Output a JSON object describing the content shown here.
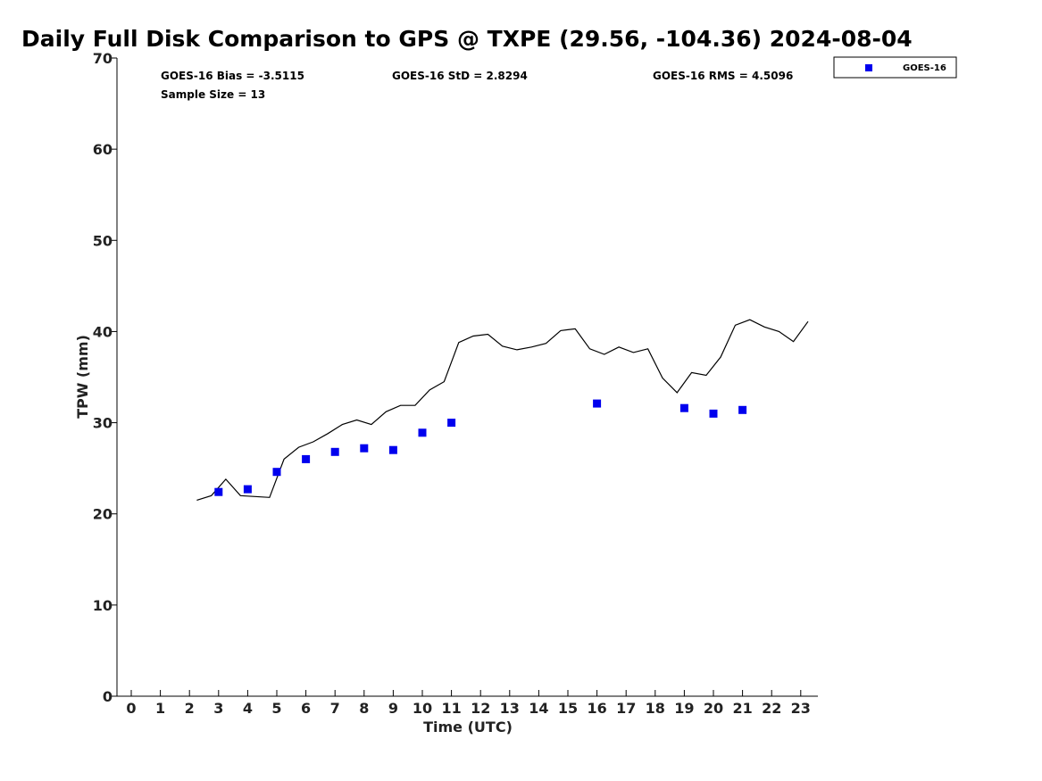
{
  "chart_data": {
    "type": "scatter",
    "title": "Daily Full Disk Comparison to GPS @ TXPE (29.56, -104.36) 2024-08-04",
    "xlabel": "Time (UTC)",
    "ylabel": "TPW (mm)",
    "xlim": [
      -0.5,
      23.7
    ],
    "ylim": [
      0,
      70
    ],
    "x_ticks": [
      0,
      1,
      2,
      3,
      4,
      5,
      6,
      7,
      8,
      9,
      10,
      11,
      12,
      13,
      14,
      15,
      16,
      17,
      18,
      19,
      20,
      21,
      22,
      23
    ],
    "y_ticks": [
      0,
      10,
      20,
      30,
      40,
      50,
      60,
      70
    ],
    "grid": false,
    "legend_placement": "top-right outside",
    "stats": {
      "bias": "GOES-16 Bias = -3.5115",
      "std": "GOES-16 StD = 2.8294",
      "rms": "GOES-16 RMS = 4.5096",
      "sample_size": "Sample Size = 13"
    },
    "series": [
      {
        "name": "GOES-16",
        "kind": "scatter",
        "marker": "square",
        "color": "#0000ee",
        "points": [
          [
            3,
            22.4
          ],
          [
            4,
            22.7
          ],
          [
            5,
            24.6
          ],
          [
            6,
            26.0
          ],
          [
            7,
            26.8
          ],
          [
            8,
            27.2
          ],
          [
            9,
            27.0
          ],
          [
            10,
            28.9
          ],
          [
            11,
            30.0
          ],
          [
            16,
            32.1
          ],
          [
            19,
            31.6
          ],
          [
            20,
            31.0
          ],
          [
            21,
            31.4
          ]
        ]
      },
      {
        "kind": "line",
        "color": "#000000",
        "points": [
          [
            2.25,
            21.5
          ],
          [
            2.75,
            22.0
          ],
          [
            3.25,
            23.8
          ],
          [
            3.75,
            22.0
          ],
          [
            4.25,
            21.9
          ],
          [
            4.75,
            21.8
          ],
          [
            5.25,
            26.0
          ],
          [
            5.75,
            27.3
          ],
          [
            6.25,
            27.9
          ],
          [
            6.75,
            28.8
          ],
          [
            7.25,
            29.8
          ],
          [
            7.75,
            30.3
          ],
          [
            8.25,
            29.8
          ],
          [
            8.75,
            31.2
          ],
          [
            9.25,
            31.9
          ],
          [
            9.75,
            31.9
          ],
          [
            10.25,
            33.6
          ],
          [
            10.75,
            34.5
          ],
          [
            11.25,
            38.8
          ],
          [
            11.75,
            39.5
          ],
          [
            12.25,
            39.7
          ],
          [
            12.75,
            38.4
          ],
          [
            13.25,
            38.0
          ],
          [
            13.75,
            38.3
          ],
          [
            14.25,
            38.7
          ],
          [
            14.75,
            40.1
          ],
          [
            15.25,
            40.3
          ],
          [
            15.75,
            38.1
          ],
          [
            16.25,
            37.5
          ],
          [
            16.75,
            38.3
          ],
          [
            17.25,
            37.7
          ],
          [
            17.75,
            38.1
          ],
          [
            18.25,
            34.9
          ],
          [
            18.75,
            33.3
          ],
          [
            19.25,
            35.5
          ],
          [
            19.75,
            35.2
          ],
          [
            20.25,
            37.2
          ],
          [
            20.75,
            40.7
          ],
          [
            21.25,
            41.3
          ],
          [
            21.75,
            40.5
          ],
          [
            22.25,
            40.0
          ],
          [
            22.75,
            38.9
          ],
          [
            23.25,
            41.1
          ]
        ]
      }
    ]
  }
}
